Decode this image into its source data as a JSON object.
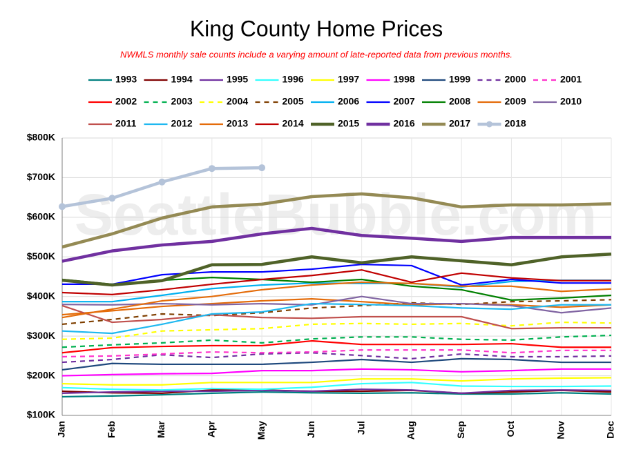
{
  "chart_data": {
    "type": "line",
    "title": "King County Home Prices",
    "subtitle": "NWMLS monthly sale counts include a varying amount of late-reported data from previous months.",
    "watermark": "SeattleBubble.com",
    "categories": [
      "Jan",
      "Feb",
      "Mar",
      "Apr",
      "May",
      "Jun",
      "Jul",
      "Aug",
      "Sep",
      "Oct",
      "Nov",
      "Dec"
    ],
    "ylim": [
      100000,
      800000
    ],
    "yticks": [
      {
        "value": 100000,
        "label": "$100K"
      },
      {
        "value": 200000,
        "label": "$200K"
      },
      {
        "value": 300000,
        "label": "$300K"
      },
      {
        "value": 400000,
        "label": "$400K"
      },
      {
        "value": 500000,
        "label": "$500K"
      },
      {
        "value": 600000,
        "label": "$600K"
      },
      {
        "value": 700000,
        "label": "$700K"
      },
      {
        "value": 800000,
        "label": "$800K"
      }
    ],
    "grid": true,
    "series": [
      {
        "name": "1993",
        "color": "#008080",
        "values": [
          147000,
          149000,
          152000,
          156000,
          159000,
          157000,
          156000,
          157000,
          154000,
          154000,
          157000,
          154000
        ]
      },
      {
        "name": "1994",
        "color": "#800000",
        "values": [
          161000,
          157000,
          156000,
          164000,
          164000,
          161000,
          161000,
          163000,
          156000,
          159000,
          163000,
          159000
        ]
      },
      {
        "name": "1995",
        "color": "#7030a0",
        "values": [
          156000,
          159000,
          161000,
          161000,
          163000,
          161000,
          166000,
          164000,
          156000,
          163000,
          164000,
          163000
        ]
      },
      {
        "name": "1996",
        "color": "#33ffff",
        "values": [
          170000,
          166000,
          164000,
          168000,
          166000,
          171000,
          180000,
          183000,
          174000,
          173000,
          173000,
          174000
        ]
      },
      {
        "name": "1997",
        "color": "#ffff00",
        "values": [
          180000,
          177000,
          177000,
          183000,
          183000,
          183000,
          192000,
          192000,
          187000,
          192000,
          194000,
          195000
        ]
      },
      {
        "name": "1998",
        "color": "#ff00ff",
        "values": [
          200000,
          203000,
          205000,
          206000,
          213000,
          213000,
          217000,
          215000,
          210000,
          213000,
          217000,
          217000
        ]
      },
      {
        "name": "1999",
        "color": "#1f497d",
        "values": [
          215000,
          231000,
          229000,
          229000,
          229000,
          234000,
          241000,
          234000,
          243000,
          241000,
          234000,
          234000
        ]
      },
      {
        "name": "2000",
        "color": "#7030a0",
        "dash": true,
        "values": [
          234000,
          241000,
          253000,
          246000,
          255000,
          258000,
          251000,
          243000,
          255000,
          248000,
          248000,
          250000
        ]
      },
      {
        "name": "2001",
        "color": "#ff33cc",
        "dash": true,
        "values": [
          248000,
          250000,
          255000,
          260000,
          258000,
          260000,
          265000,
          265000,
          265000,
          258000,
          264000,
          264000
        ]
      },
      {
        "name": "2002",
        "color": "#ff0000",
        "values": [
          258000,
          271000,
          274000,
          276000,
          276000,
          288000,
          279000,
          279000,
          279000,
          281000,
          272000,
          272000
        ]
      },
      {
        "name": "2003",
        "color": "#00b050",
        "dash": true,
        "values": [
          272000,
          278000,
          283000,
          290000,
          283000,
          293000,
          298000,
          298000,
          292000,
          290000,
          298000,
          302000
        ]
      },
      {
        "name": "2004",
        "color": "#ffff00",
        "dash": true,
        "values": [
          292000,
          295000,
          313000,
          316000,
          319000,
          330000,
          332000,
          330000,
          332000,
          326000,
          335000,
          333000
        ]
      },
      {
        "name": "2005",
        "color": "#7f3f00",
        "dash": true,
        "values": [
          330000,
          342000,
          356000,
          352000,
          359000,
          371000,
          377000,
          384000,
          380000,
          387000,
          389000,
          392000
        ]
      },
      {
        "name": "2006",
        "color": "#00b0f0",
        "values": [
          387000,
          387000,
          403000,
          420000,
          429000,
          434000,
          433000,
          433000,
          424000,
          438000,
          441000,
          441000
        ]
      },
      {
        "name": "2007",
        "color": "#0000ff",
        "values": [
          431000,
          431000,
          455000,
          462000,
          462000,
          469000,
          481000,
          478000,
          429000,
          443000,
          434000,
          434000
        ]
      },
      {
        "name": "2008",
        "color": "#008000",
        "values": [
          443000,
          431000,
          441000,
          448000,
          443000,
          436000,
          443000,
          426000,
          417000,
          391000,
          396000,
          403000
        ]
      },
      {
        "name": "2009",
        "color": "#e46c0a",
        "values": [
          354000,
          364000,
          375000,
          382000,
          389000,
          394000,
          387000,
          379000,
          382000,
          379000,
          373000,
          379000
        ]
      },
      {
        "name": "2010",
        "color": "#8064a2",
        "values": [
          380000,
          379000,
          382000,
          379000,
          382000,
          379000,
          400000,
          382000,
          382000,
          377000,
          359000,
          371000
        ]
      },
      {
        "name": "2011",
        "color": "#c0504d",
        "values": [
          377000,
          335000,
          342000,
          354000,
          347000,
          345000,
          349000,
          349000,
          349000,
          319000,
          321000,
          321000
        ]
      },
      {
        "name": "2012",
        "color": "#1fb8f0",
        "values": [
          313000,
          307000,
          330000,
          356000,
          361000,
          382000,
          380000,
          377000,
          371000,
          368000,
          379000,
          379000
        ]
      },
      {
        "name": "2013",
        "color": "#e46c0a",
        "values": [
          347000,
          368000,
          389000,
          400000,
          417000,
          429000,
          436000,
          433000,
          426000,
          426000,
          413000,
          419000
        ]
      },
      {
        "name": "2014",
        "color": "#c00000",
        "values": [
          410000,
          405000,
          417000,
          431000,
          443000,
          453000,
          467000,
          436000,
          459000,
          447000,
          440000,
          440000
        ]
      },
      {
        "name": "2015",
        "color": "#4f6228",
        "thick": true,
        "values": [
          441000,
          429000,
          440000,
          480000,
          481000,
          500000,
          485000,
          500000,
          490000,
          480000,
          500000,
          507000
        ]
      },
      {
        "name": "2016",
        "color": "#7030a0",
        "thick": true,
        "values": [
          489000,
          515000,
          530000,
          539000,
          558000,
          572000,
          554000,
          547000,
          539000,
          549000,
          549000,
          549000
        ]
      },
      {
        "name": "2017",
        "color": "#948a54",
        "thick": true,
        "values": [
          525000,
          558000,
          598000,
          626000,
          633000,
          652000,
          659000,
          649000,
          626000,
          631000,
          631000,
          634000
        ]
      },
      {
        "name": "2018",
        "color": "#b4c3d9",
        "thick": true,
        "markers": true,
        "values": [
          627000,
          648000,
          689000,
          723000,
          725000,
          null,
          null,
          null,
          null,
          null,
          null,
          null
        ]
      }
    ]
  }
}
